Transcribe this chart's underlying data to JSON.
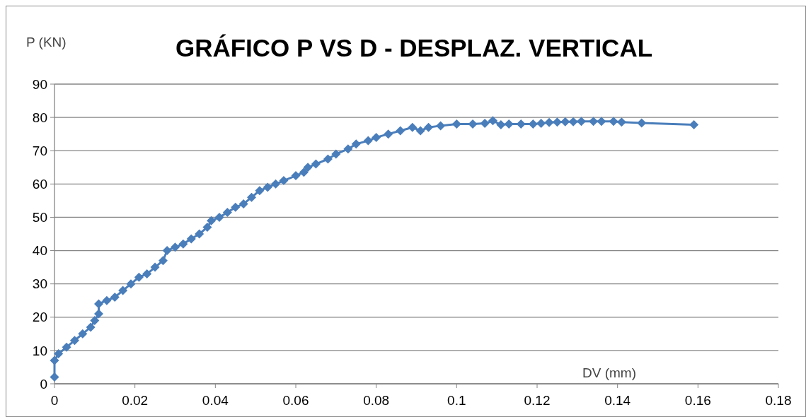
{
  "chart_data": {
    "type": "line",
    "title": "GRÁFICO P VS D - DESPLAZ. VERTICAL",
    "xlabel": "DV (mm)",
    "ylabel": "P (KN)",
    "xlim": [
      0,
      0.18
    ],
    "xticks": [
      0,
      0.02,
      0.04,
      0.06,
      0.08,
      0.1,
      0.12,
      0.14,
      0.16,
      0.18
    ],
    "ylim": [
      0,
      90
    ],
    "yticks": [
      0,
      10,
      20,
      30,
      40,
      50,
      60,
      70,
      80,
      90
    ],
    "grid": "y",
    "marker": "diamond",
    "line_style": "solid",
    "series": [
      {
        "color": "#4a7ebb",
        "x": [
          0,
          0,
          0.001,
          0.003,
          0.005,
          0.007,
          0.009,
          0.01,
          0.011,
          0.011,
          0.013,
          0.015,
          0.017,
          0.019,
          0.021,
          0.023,
          0.025,
          0.027,
          0.028,
          0.03,
          0.032,
          0.034,
          0.036,
          0.038,
          0.039,
          0.041,
          0.043,
          0.045,
          0.047,
          0.049,
          0.051,
          0.053,
          0.055,
          0.057,
          0.06,
          0.062,
          0.063,
          0.065,
          0.068,
          0.07,
          0.073,
          0.075,
          0.078,
          0.08,
          0.083,
          0.086,
          0.089,
          0.091,
          0.093,
          0.096,
          0.1,
          0.104,
          0.107,
          0.109,
          0.111,
          0.113,
          0.116,
          0.119,
          0.121,
          0.123,
          0.125,
          0.127,
          0.129,
          0.131,
          0.134,
          0.136,
          0.139,
          0.141,
          0.146,
          0.159
        ],
        "values": [
          2,
          7,
          9,
          11,
          13,
          15,
          17,
          19,
          21,
          24,
          25,
          26,
          28,
          30,
          32,
          33,
          35,
          37,
          40,
          41,
          42,
          43.5,
          45,
          47,
          49,
          50,
          51.5,
          53,
          54,
          56,
          58,
          59,
          60,
          61,
          62.5,
          63.5,
          65,
          66,
          67.5,
          69,
          70.5,
          72,
          73,
          74,
          75,
          76,
          77,
          76,
          77,
          77.5,
          78,
          78,
          78.2,
          79,
          77.8,
          78,
          78,
          78,
          78.2,
          78.5,
          78.6,
          78.7,
          78.7,
          78.8,
          78.8,
          78.8,
          78.8,
          78.6,
          78.3,
          77.8
        ]
      }
    ]
  }
}
